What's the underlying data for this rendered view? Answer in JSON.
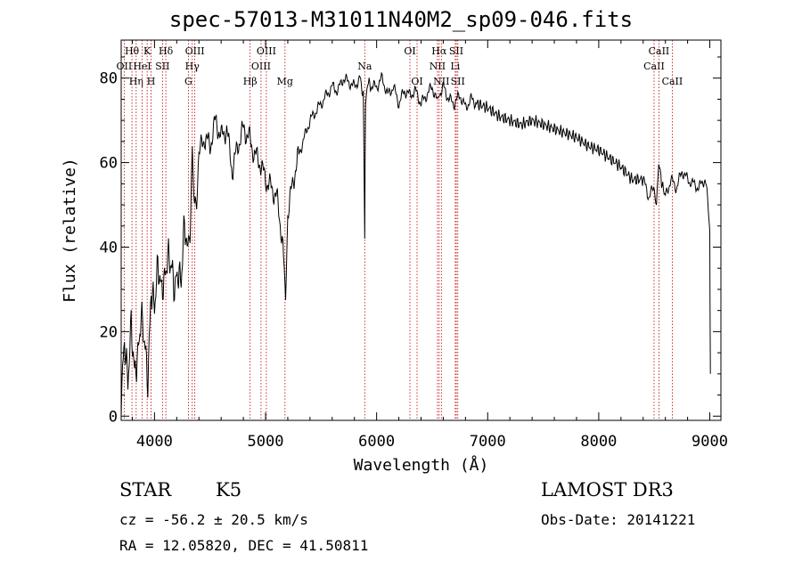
{
  "chart_data": {
    "type": "line",
    "title": "spec-57013-M31011N40M2_sp09-046.fits",
    "xlabel": "Wavelength (Å)",
    "ylabel": "Flux (relative)",
    "xlim": [
      3700,
      9100
    ],
    "ylim": [
      -1,
      89
    ],
    "xticks": [
      4000,
      5000,
      6000,
      7000,
      8000,
      9000
    ],
    "xtick_labels": [
      "4000",
      "5000",
      "6000",
      "7000",
      "8000",
      "9000"
    ],
    "yticks": [
      0,
      20,
      40,
      60,
      80
    ],
    "ytick_labels": [
      "0",
      "20",
      "40",
      "60",
      "80"
    ],
    "series": [
      {
        "name": "flux",
        "x": [
          3700,
          3730,
          3760,
          3790,
          3820,
          3850,
          3880,
          3910,
          3940,
          3970,
          4000,
          4030,
          4060,
          4090,
          4120,
          4150,
          4180,
          4210,
          4240,
          4270,
          4300,
          4320,
          4340,
          4360,
          4380,
          4400,
          4450,
          4500,
          4550,
          4600,
          4650,
          4700,
          4750,
          4800,
          4850,
          4900,
          4950,
          5000,
          5050,
          5100,
          5150,
          5180,
          5200,
          5250,
          5300,
          5350,
          5400,
          5450,
          5500,
          5550,
          5600,
          5650,
          5700,
          5750,
          5800,
          5850,
          5880,
          5893,
          5900,
          5920,
          5950,
          6000,
          6050,
          6100,
          6150,
          6200,
          6250,
          6300,
          6350,
          6400,
          6450,
          6500,
          6550,
          6563,
          6600,
          6650,
          6700,
          6750,
          6800,
          6850,
          6900,
          7000,
          7100,
          7200,
          7300,
          7400,
          7500,
          7600,
          7700,
          7800,
          7900,
          8000,
          8100,
          8200,
          8300,
          8400,
          8450,
          8500,
          8520,
          8540,
          8560,
          8600,
          8650,
          8700,
          8750,
          8800,
          8850,
          8900,
          8950,
          8980,
          9000,
          9005
        ],
        "y": [
          4,
          18,
          8,
          22,
          10,
          14,
          24,
          18,
          8,
          30,
          26,
          36,
          30,
          32,
          38,
          36,
          30,
          34,
          32,
          46,
          38,
          40,
          60,
          48,
          50,
          62,
          66,
          64,
          70,
          66,
          68,
          58,
          64,
          68,
          66,
          62,
          60,
          56,
          54,
          52,
          42,
          30,
          48,
          56,
          62,
          66,
          70,
          72,
          74,
          76,
          78,
          77,
          80,
          79,
          78,
          80,
          76,
          42,
          74,
          79,
          78,
          78,
          80,
          76,
          78,
          74,
          77,
          76,
          77,
          74,
          76,
          78,
          74,
          76,
          78,
          75,
          74,
          76,
          73,
          75,
          74,
          73,
          71,
          70,
          69,
          70,
          69,
          68,
          67,
          66,
          64,
          63,
          61,
          59,
          56,
          56,
          52,
          54,
          50,
          60,
          56,
          52,
          56,
          54,
          58,
          56,
          55,
          54,
          56,
          53,
          44,
          10
        ]
      }
    ],
    "lines": [
      {
        "label": "Hθ",
        "x": 3797,
        "row": 0
      },
      {
        "label": "OII",
        "x": 3727,
        "row": 1
      },
      {
        "label": "Hη",
        "x": 3835,
        "row": 2
      },
      {
        "label": "HeI",
        "x": 3889,
        "row": 1
      },
      {
        "label": "K",
        "x": 3934,
        "row": 0
      },
      {
        "label": "H",
        "x": 3969,
        "row": 2
      },
      {
        "label": "SII",
        "x": 4072,
        "row": 1
      },
      {
        "label": "Hδ",
        "x": 4102,
        "row": 0
      },
      {
        "label": "G",
        "x": 4305,
        "row": 2
      },
      {
        "label": "OIII",
        "x": 4363,
        "row": 0
      },
      {
        "label": "Hγ",
        "x": 4340,
        "row": 1
      },
      {
        "label": "Hβ",
        "x": 4861,
        "row": 2
      },
      {
        "label": "OIII",
        "x": 4959,
        "row": 1
      },
      {
        "label": "OIII",
        "x": 5007,
        "row": 0
      },
      {
        "label": "Mg",
        "x": 5175,
        "row": 2
      },
      {
        "label": "Na",
        "x": 5893,
        "row": 1
      },
      {
        "label": "OI",
        "x": 6300,
        "row": 0
      },
      {
        "label": "OI",
        "x": 6364,
        "row": 2
      },
      {
        "label": "NII",
        "x": 6548,
        "row": 1
      },
      {
        "label": "Hα",
        "x": 6563,
        "row": 0
      },
      {
        "label": "NII",
        "x": 6583,
        "row": 2
      },
      {
        "label": "Li",
        "x": 6708,
        "row": 1
      },
      {
        "label": "SII",
        "x": 6717,
        "row": 0
      },
      {
        "label": "SII",
        "x": 6731,
        "row": 2
      },
      {
        "label": "CaII",
        "x": 8498,
        "row": 1
      },
      {
        "label": "CaII",
        "x": 8542,
        "row": 0
      },
      {
        "label": "CaII",
        "x": 8662,
        "row": 2
      }
    ]
  },
  "info": {
    "object_class": "STAR",
    "subclass": "K5",
    "survey": "LAMOST DR3",
    "redshift": "cz = -56.2 ± 20.5 km/s",
    "obs_date": "Obs-Date: 20141221",
    "coords": "RA =  12.05820, DEC =  41.50811"
  }
}
